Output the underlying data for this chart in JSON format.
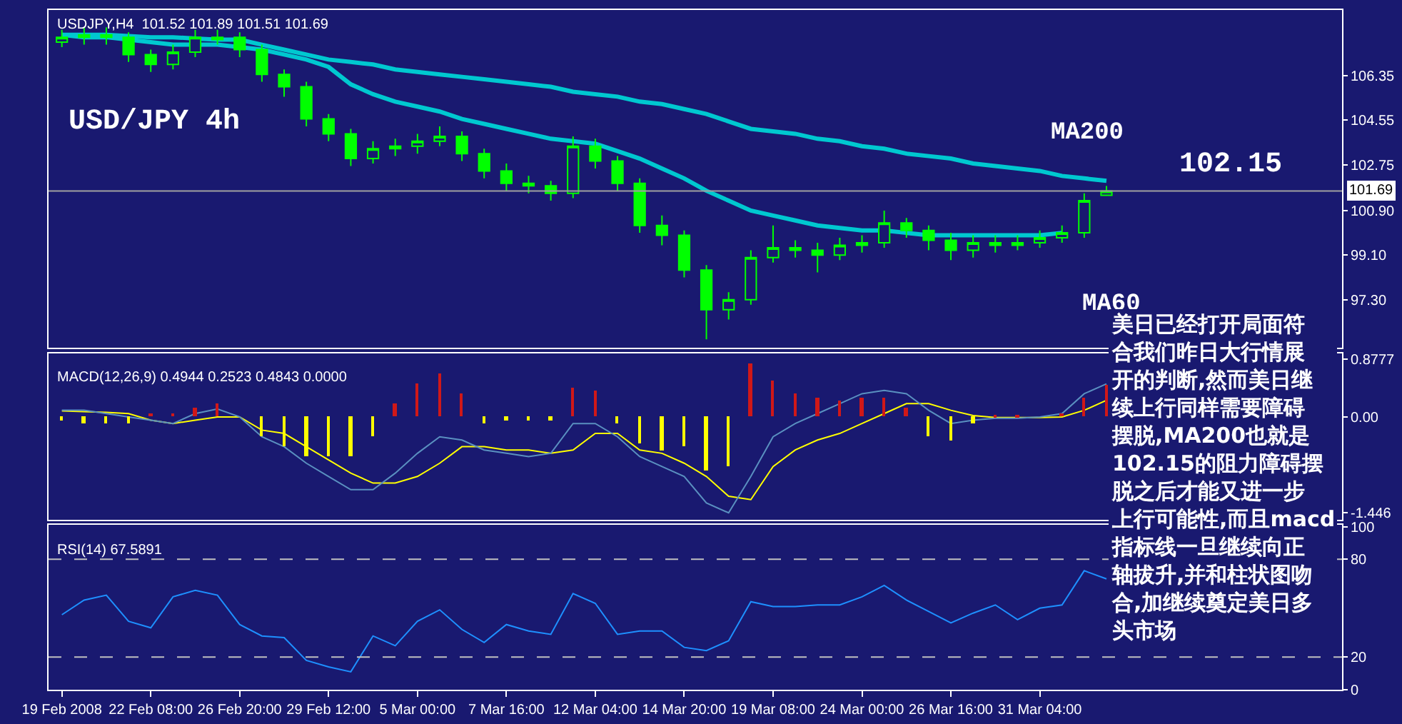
{
  "chart_data": [
    {
      "type": "candlestick",
      "categories": [
        null,
        null,
        null,
        null,
        null,
        null,
        null,
        null,
        null,
        null,
        null,
        null,
        null,
        null,
        null,
        null,
        null,
        null,
        null,
        null,
        null,
        null,
        null,
        null,
        null,
        null,
        null,
        null,
        null,
        null,
        null,
        null,
        null,
        null,
        null,
        null,
        null,
        null,
        null,
        null,
        null,
        null,
        null,
        null,
        null,
        null,
        null,
        null
      ],
      "color": "#00ff00",
      "ohlc": [
        [
          107.7,
          108.2,
          107.5,
          107.9
        ],
        [
          107.9,
          108.3,
          107.6,
          108.0
        ],
        [
          108.0,
          108.3,
          107.6,
          107.9
        ],
        [
          107.9,
          108.1,
          106.9,
          107.2
        ],
        [
          107.2,
          107.4,
          106.5,
          106.8
        ],
        [
          106.8,
          107.6,
          106.6,
          107.3
        ],
        [
          107.3,
          108.2,
          107.1,
          107.9
        ],
        [
          107.8,
          108.2,
          107.6,
          107.9
        ],
        [
          107.9,
          108.1,
          107.1,
          107.4
        ],
        [
          107.4,
          107.6,
          106.1,
          106.4
        ],
        [
          106.4,
          106.6,
          105.5,
          105.9
        ],
        [
          105.9,
          106.1,
          104.3,
          104.6
        ],
        [
          104.6,
          104.8,
          103.7,
          104.0
        ],
        [
          104.0,
          104.2,
          102.7,
          103.0
        ],
        [
          103.0,
          103.7,
          102.8,
          103.4
        ],
        [
          103.4,
          103.8,
          103.1,
          103.5
        ],
        [
          103.5,
          104.0,
          103.2,
          103.7
        ],
        [
          103.7,
          104.3,
          103.5,
          103.9
        ],
        [
          103.9,
          104.1,
          102.9,
          103.2
        ],
        [
          103.2,
          103.4,
          102.2,
          102.5
        ],
        [
          102.5,
          102.8,
          101.7,
          102.0
        ],
        [
          102.0,
          102.3,
          101.6,
          101.9
        ],
        [
          101.9,
          102.1,
          101.3,
          101.6
        ],
        [
          101.6,
          103.9,
          101.4,
          103.5
        ],
        [
          103.5,
          103.8,
          102.6,
          102.9
        ],
        [
          102.9,
          103.1,
          101.7,
          102.0
        ],
        [
          102.0,
          102.2,
          100.0,
          100.3
        ],
        [
          100.3,
          100.7,
          99.5,
          99.9
        ],
        [
          99.9,
          100.1,
          98.2,
          98.5
        ],
        [
          98.5,
          98.7,
          95.7,
          96.9
        ],
        [
          96.9,
          97.6,
          96.5,
          97.3
        ],
        [
          97.3,
          99.3,
          97.1,
          99.0
        ],
        [
          99.0,
          100.3,
          98.8,
          99.4
        ],
        [
          99.4,
          99.7,
          99.0,
          99.3
        ],
        [
          99.3,
          99.6,
          98.4,
          99.1
        ],
        [
          99.1,
          99.8,
          98.9,
          99.5
        ],
        [
          99.5,
          99.9,
          99.2,
          99.6
        ],
        [
          99.6,
          100.9,
          99.4,
          100.4
        ],
        [
          100.4,
          100.6,
          99.8,
          100.1
        ],
        [
          100.1,
          100.3,
          99.3,
          99.7
        ],
        [
          99.7,
          100.0,
          98.9,
          99.3
        ],
        [
          99.3,
          99.9,
          99.0,
          99.6
        ],
        [
          99.6,
          99.9,
          99.2,
          99.5
        ],
        [
          99.5,
          99.9,
          99.3,
          99.6
        ],
        [
          99.6,
          100.1,
          99.4,
          99.8
        ],
        [
          99.8,
          100.3,
          99.6,
          100.0
        ],
        [
          100.0,
          101.6,
          99.8,
          101.3
        ],
        [
          101.52,
          101.89,
          101.51,
          101.69
        ]
      ],
      "series": [
        {
          "type": "line",
          "color": "#00c8d0",
          "values": [
            108.0,
            108.0,
            108.0,
            107.95,
            107.9,
            107.9,
            107.85,
            107.8,
            107.8,
            107.6,
            107.4,
            107.2,
            107.0,
            106.9,
            106.8,
            106.6,
            106.5,
            106.4,
            106.3,
            106.2,
            106.1,
            106.0,
            105.9,
            105.7,
            105.6,
            105.5,
            105.3,
            105.2,
            105.0,
            104.8,
            104.5,
            104.2,
            104.1,
            104.0,
            103.8,
            103.7,
            103.5,
            103.4,
            103.2,
            103.1,
            103.0,
            102.8,
            102.7,
            102.6,
            102.5,
            102.3,
            102.2,
            102.1
          ]
        },
        {
          "type": "line",
          "color": "#00c8d0",
          "values": [
            108.0,
            107.9,
            107.9,
            107.8,
            107.7,
            107.6,
            107.6,
            107.6,
            107.5,
            107.4,
            107.2,
            107.0,
            106.7,
            106.0,
            105.6,
            105.3,
            105.1,
            104.9,
            104.6,
            104.4,
            104.2,
            104.0,
            103.8,
            103.7,
            103.6,
            103.3,
            103.0,
            102.6,
            102.2,
            101.7,
            101.3,
            100.9,
            100.7,
            100.5,
            100.3,
            100.2,
            100.1,
            100.1,
            100.0,
            99.9,
            99.9,
            99.9,
            99.9,
            99.9,
            99.9,
            100.0,
            null,
            null
          ]
        }
      ],
      "ylim": [
        95.36,
        109.0
      ],
      "yticks": [
        106.35,
        104.55,
        102.75,
        {
          "value": 100.9,
          "label": "100.90"
        },
        {
          "value": 99.1,
          "label": "99.10"
        },
        {
          "value": 97.3,
          "label": "97.30"
        }
      ],
      "ref_lines": [
        {
          "axis": "y",
          "value": 101.69,
          "label": "101.69",
          "color": "#a0a0a0"
        }
      ],
      "annotations": [
        "USDJPY,H4  101.52 101.89 101.51 101.69",
        "USD/JPY 4h",
        "MA200",
        "MA60",
        "102.15"
      ],
      "tick_labels": "y"
    },
    {
      "type": "bar",
      "categories": [
        null,
        null,
        null,
        null,
        null,
        null,
        null,
        null,
        null,
        null,
        null,
        null,
        null,
        null,
        null,
        null,
        null,
        null,
        null,
        null,
        null,
        null,
        null,
        null,
        null,
        null,
        null,
        null,
        null,
        null,
        null,
        null,
        null,
        null,
        null,
        null,
        null,
        null,
        null,
        null,
        null,
        null,
        null,
        null,
        null,
        null,
        null,
        null
      ],
      "values": [
        -0.05,
        -0.1,
        -0.1,
        -0.1,
        0.05,
        0.05,
        0.15,
        0.2,
        0.0,
        -0.3,
        -0.45,
        -0.6,
        -0.6,
        -0.6,
        -0.3,
        0.2,
        0.5,
        0.65,
        0.35,
        -0.1,
        -0.05,
        -0.05,
        -0.05,
        0.45,
        0.4,
        -0.1,
        -0.4,
        -0.5,
        -0.45,
        -0.8,
        -0.75,
        0.8,
        0.55,
        0.35,
        0.3,
        0.25,
        0.3,
        0.3,
        0.15,
        -0.3,
        -0.35,
        -0.1,
        0.02,
        0.02,
        0.0,
        0.05,
        0.3,
        0.49
      ],
      "colors": [
        "#ffff00",
        "#ffff00",
        "#ffff00",
        "#ffff00",
        "#d01818",
        "#d01818",
        "#d01818",
        "#d01818",
        "#ffff00",
        "#ffff00",
        "#ffff00",
        "#ffff00",
        "#ffff00",
        "#ffff00",
        "#ffff00",
        "#d01818",
        "#d01818",
        "#d01818",
        "#d01818",
        "#ffff00",
        "#ffff00",
        "#ffff00",
        "#ffff00",
        "#d01818",
        "#d01818",
        "#ffff00",
        "#ffff00",
        "#ffff00",
        "#ffff00",
        "#ffff00",
        "#ffff00",
        "#d01818",
        "#d01818",
        "#d01818",
        "#d01818",
        "#d01818",
        "#d01818",
        "#d01818",
        "#d01818",
        "#ffff00",
        "#ffff00",
        "#ffff00",
        "#d01818",
        "#d01818",
        "#ffff00",
        "#d01818",
        "#d01818",
        "#d01818"
      ],
      "series": [
        {
          "type": "line",
          "color": "#ffff00",
          "values": [
            0.09,
            0.08,
            0.07,
            0.05,
            -0.05,
            -0.1,
            -0.05,
            0.0,
            0.0,
            -0.2,
            -0.25,
            -0.45,
            -0.65,
            -0.85,
            -1.0,
            -1.0,
            -0.9,
            -0.7,
            -0.45,
            -0.45,
            -0.5,
            -0.5,
            -0.55,
            -0.5,
            -0.25,
            -0.25,
            -0.5,
            -0.55,
            -0.7,
            -0.9,
            -1.2,
            -1.25,
            -0.75,
            -0.5,
            -0.35,
            -0.25,
            -0.1,
            0.05,
            0.2,
            0.2,
            0.1,
            0.02,
            -0.01,
            -0.01,
            -0.01,
            0.0,
            0.1,
            0.25
          ]
        },
        {
          "type": "line",
          "color": "#5a90c0",
          "values": [
            0.1,
            0.1,
            0.05,
            0.0,
            -0.05,
            -0.1,
            0.05,
            0.12,
            0.0,
            -0.3,
            -0.45,
            -0.7,
            -0.9,
            -1.1,
            -1.1,
            -0.85,
            -0.55,
            -0.3,
            -0.35,
            -0.5,
            -0.55,
            -0.6,
            -0.55,
            -0.1,
            -0.1,
            -0.3,
            -0.6,
            -0.75,
            -0.9,
            -1.3,
            -1.45,
            -0.9,
            -0.3,
            -0.1,
            0.05,
            0.2,
            0.35,
            0.4,
            0.35,
            0.1,
            -0.1,
            -0.05,
            -0.02,
            -0.02,
            0.0,
            0.05,
            0.35,
            0.5
          ]
        }
      ],
      "ylim": [
        -1.55,
        0.96
      ],
      "yticks": [
        0.8777,
        {
          "value": 0,
          "label": "0.00"
        },
        -1.446
      ],
      "annotations": [
        "MACD(12,26,9) 0.4944 0.2523 0.4843 0.0000"
      ],
      "tick_labels": "y"
    },
    {
      "type": "line",
      "categories": [
        "19 Feb 2008",
        null,
        null,
        null,
        "22 Feb 08:00",
        null,
        null,
        null,
        "26 Feb 20:00",
        null,
        null,
        null,
        "29 Feb 12:00",
        null,
        null,
        null,
        "5 Mar 00:00",
        null,
        null,
        null,
        "7 Mar 16:00",
        null,
        null,
        null,
        "12 Mar 04:00",
        null,
        null,
        null,
        "14 Mar 20:00",
        null,
        null,
        null,
        "19 Mar 08:00",
        null,
        null,
        null,
        "24 Mar 00:00",
        null,
        null,
        null,
        "26 Mar 16:00",
        null,
        null,
        null,
        "31 Mar 04:00",
        null,
        null,
        null
      ],
      "series": [
        {
          "color": "#1e90ff",
          "values": [
            46,
            55,
            58,
            42,
            38,
            57,
            61,
            58,
            40,
            33,
            32,
            18,
            14,
            11,
            33,
            27,
            42,
            49,
            37,
            29,
            40,
            36,
            34,
            59,
            53,
            34,
            36,
            36,
            26,
            24,
            30,
            54,
            51,
            51,
            52,
            52,
            57,
            64,
            55,
            48,
            41,
            47,
            52,
            43,
            50,
            52,
            73,
            68
          ]
        }
      ],
      "ylim": [
        0,
        101
      ],
      "yticks": [
        0,
        20,
        80,
        100
      ],
      "ref_lines": [
        {
          "axis": "y",
          "value": 80,
          "color": "#c0c0c0",
          "line_style": "dashed"
        },
        {
          "axis": "y",
          "value": 20,
          "color": "#c0c0c0",
          "line_style": "dashed"
        }
      ],
      "annotations": [
        "RSI(14) 67.5891"
      ]
    },
    {
      "type": "other",
      "annotations": [
        "美日已经打开局面符",
        "合我们昨日大行情展",
        "开的判断,然而美日继",
        "续上行同样需要障碍",
        "摆脱,MA200也就是",
        "102.15的阻力障碍摆",
        "脱之后才能又进一步",
        "上行可能性,而且macd",
        "指标线一旦继续向正",
        "轴拔升,并和柱状图吻",
        "合,加继续奠定美日多",
        "头市场"
      ]
    }
  ]
}
